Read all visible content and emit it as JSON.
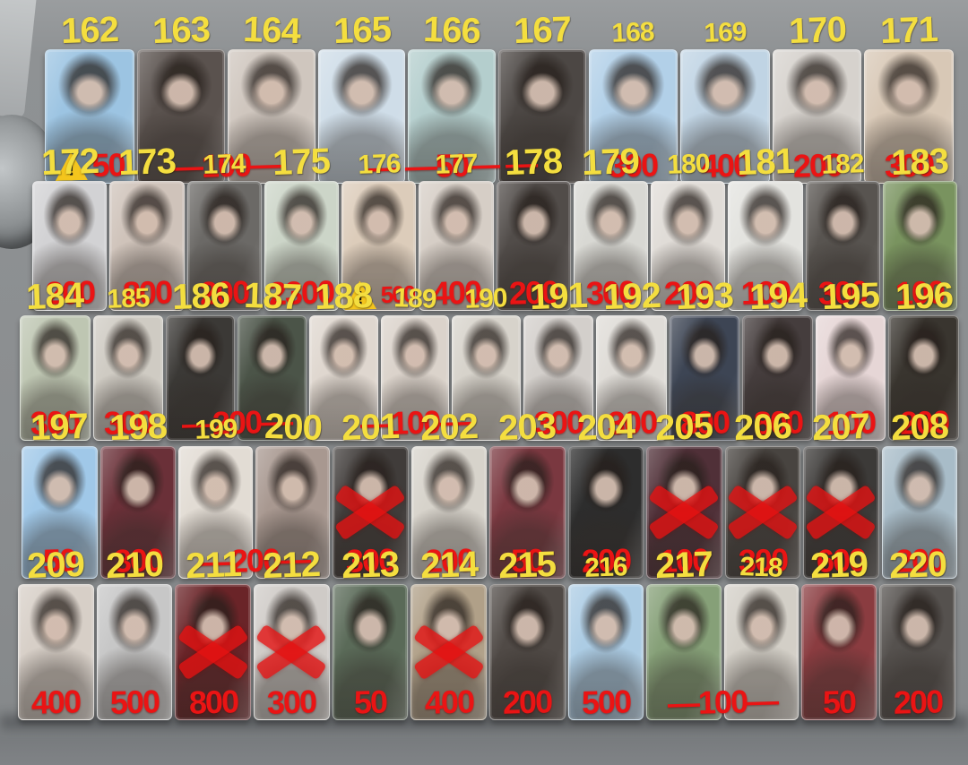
{
  "colors": {
    "number_yellow": "#f4de3f",
    "price_red": "#ea1414",
    "warning_yellow": "#f4c51d",
    "background_gray": "#8b8e90"
  },
  "rows": [
    {
      "groups": [
        {
          "price": "50",
          "warning": true,
          "cards": [
            {
              "id": "162",
              "photo": "#9cc4e2"
            }
          ]
        },
        {
          "price": "—100—",
          "cards": [
            {
              "id": "163",
              "photo": "#5a524e"
            },
            {
              "id": "164",
              "photo": "#cfc6be"
            }
          ]
        },
        {
          "price": "— —50— —",
          "cards": [
            {
              "id": "165",
              "photo": "#cfdde8"
            },
            {
              "id": "166",
              "photo": "#b4cecd"
            },
            {
              "id": "167",
              "photo": "#4c4744"
            }
          ]
        },
        {
          "price": "300",
          "cards": [
            {
              "id": "168",
              "photo": "#b2d0e8",
              "small": true
            }
          ]
        },
        {
          "price": "400",
          "cards": [
            {
              "id": "169",
              "photo": "#c0d4e4",
              "small": true
            }
          ]
        },
        {
          "price": "200",
          "cards": [
            {
              "id": "170",
              "photo": "#d6d2cd"
            }
          ]
        },
        {
          "price": "300",
          "cards": [
            {
              "id": "171",
              "photo": "#d8c8b6"
            }
          ]
        }
      ]
    },
    {
      "groups": [
        {
          "price": "200",
          "cards": [
            {
              "id": "172",
              "photo": "#d2d2d4"
            }
          ]
        },
        {
          "price": "800",
          "cards": [
            {
              "id": "173",
              "photo": "#cfc3ba"
            }
          ]
        },
        {
          "price": "200",
          "cards": [
            {
              "id": "174",
              "photo": "#6b6966",
              "small": true
            }
          ]
        },
        {
          "price": "2300",
          "cards": [
            {
              "id": "175",
              "photo": "#ccd5c8"
            }
          ]
        },
        {
          "price": "500",
          "warning": true,
          "small_price": true,
          "cards": [
            {
              "id": "176",
              "photo": "#dcccba",
              "small": true
            }
          ]
        },
        {
          "price": "400",
          "cards": [
            {
              "id": "177",
              "photo": "#d6cec6",
              "small": true
            }
          ]
        },
        {
          "price": "200",
          "cards": [
            {
              "id": "178",
              "photo": "#514c49"
            }
          ]
        },
        {
          "price": "300",
          "cards": [
            {
              "id": "179",
              "photo": "#d8d8d3"
            }
          ]
        },
        {
          "price": "200",
          "cards": [
            {
              "id": "180",
              "photo": "#e0dcd7",
              "small": true
            }
          ]
        },
        {
          "price": "100",
          "cards": [
            {
              "id": "181",
              "photo": "#e3e3df"
            }
          ]
        },
        {
          "price": "300",
          "cards": [
            {
              "id": "182",
              "photo": "#585450",
              "small": true
            }
          ]
        },
        {
          "price": "100",
          "cards": [
            {
              "id": "183",
              "photo": "#79935f"
            }
          ]
        }
      ]
    },
    {
      "groups": [
        {
          "price": "300",
          "cards": [
            {
              "id": "184",
              "photo": "#bec6b2"
            }
          ]
        },
        {
          "price": "300",
          "cards": [
            {
              "id": "185",
              "photo": "#cfcbc3",
              "small": true
            }
          ]
        },
        {
          "price": "—200—",
          "cards": [
            {
              "id": "186",
              "photo": "#3b3936"
            },
            {
              "id": "187",
              "photo": "#4b5448"
            }
          ]
        },
        {
          "price": "—100—",
          "cards": [
            {
              "id": "188",
              "photo": "#dfd7cf"
            },
            {
              "id": "189",
              "photo": "#dbd3cb",
              "small": true
            },
            {
              "id": "190",
              "photo": "#d7d3cb",
              "small": true
            }
          ]
        },
        {
          "price": "300",
          "cards": [
            {
              "id": "191",
              "photo": "#d3cfcb"
            }
          ]
        },
        {
          "price": "300",
          "cards": [
            {
              "id": "192",
              "photo": "#dfdcd7"
            }
          ]
        },
        {
          "price": "800",
          "cards": [
            {
              "id": "193",
              "photo": "#3d4554"
            }
          ]
        },
        {
          "price": "800",
          "cards": [
            {
              "id": "194",
              "photo": "#453d3d"
            }
          ]
        },
        {
          "price": "100",
          "cards": [
            {
              "id": "195",
              "photo": "#e6d6d6"
            }
          ]
        },
        {
          "price": "200",
          "cards": [
            {
              "id": "196",
              "photo": "#39352f"
            }
          ]
        }
      ]
    },
    {
      "groups": [
        {
          "price": "50",
          "cards": [
            {
              "id": "197",
              "photo": "#a0c8e8"
            }
          ]
        },
        {
          "price": "300",
          "cards": [
            {
              "id": "198",
              "photo": "#6a3038"
            }
          ]
        },
        {
          "price": "—200—",
          "cards": [
            {
              "id": "199",
              "photo": "#e2dcd4",
              "small": true
            },
            {
              "id": "200",
              "photo": "#a89890"
            }
          ]
        },
        {
          "price": "300",
          "cards": [
            {
              "id": "201",
              "photo": "#403c3a",
              "crossed": true
            }
          ]
        },
        {
          "price": "200",
          "cards": [
            {
              "id": "202",
              "photo": "#d7d3cb"
            }
          ]
        },
        {
          "price": "50",
          "cards": [
            {
              "id": "203",
              "photo": "#7a3840"
            }
          ]
        },
        {
          "price": "200",
          "cards": [
            {
              "id": "204",
              "photo": "#2d2d2d"
            }
          ]
        },
        {
          "price": "100",
          "cards": [
            {
              "id": "205",
              "photo": "#503038",
              "crossed": true
            }
          ]
        },
        {
          "price": "300",
          "cards": [
            {
              "id": "206",
              "photo": "#484440",
              "crossed": true
            }
          ]
        },
        {
          "price": "600",
          "cards": [
            {
              "id": "207",
              "photo": "#3c3a38",
              "crossed": true
            }
          ]
        },
        {
          "price": "200",
          "cards": [
            {
              "id": "208",
              "photo": "#a8bcc8"
            }
          ]
        }
      ]
    },
    {
      "groups": [
        {
          "price": "400",
          "cards": [
            {
              "id": "209",
              "photo": "#d7cfc7"
            }
          ]
        },
        {
          "price": "500",
          "cards": [
            {
              "id": "210",
              "photo": "#c7c7c7"
            }
          ]
        },
        {
          "price": "800",
          "cards": [
            {
              "id": "211",
              "photo": "#6a2428",
              "crossed": true
            }
          ]
        },
        {
          "price": "300",
          "cards": [
            {
              "id": "212",
              "photo": "#cfcbc7",
              "crossed": true
            }
          ]
        },
        {
          "price": "50",
          "cards": [
            {
              "id": "213",
              "photo": "#5a6a58"
            }
          ]
        },
        {
          "price": "400",
          "cards": [
            {
              "id": "214",
              "photo": "#b0a088",
              "crossed": true
            }
          ]
        },
        {
          "price": "200",
          "cards": [
            {
              "id": "215",
              "photo": "#504a46"
            }
          ]
        },
        {
          "price": "500",
          "cards": [
            {
              "id": "216",
              "photo": "#accce4",
              "small": true
            }
          ]
        },
        {
          "price": "—100—",
          "cards": [
            {
              "id": "217",
              "photo": "#86a078"
            },
            {
              "id": "218",
              "photo": "#d3cfc7",
              "small": true
            }
          ]
        },
        {
          "price": "50",
          "cards": [
            {
              "id": "219",
              "photo": "#8a3c40"
            }
          ]
        },
        {
          "price": "200",
          "cards": [
            {
              "id": "220",
              "photo": "#55514e"
            }
          ]
        }
      ]
    }
  ]
}
